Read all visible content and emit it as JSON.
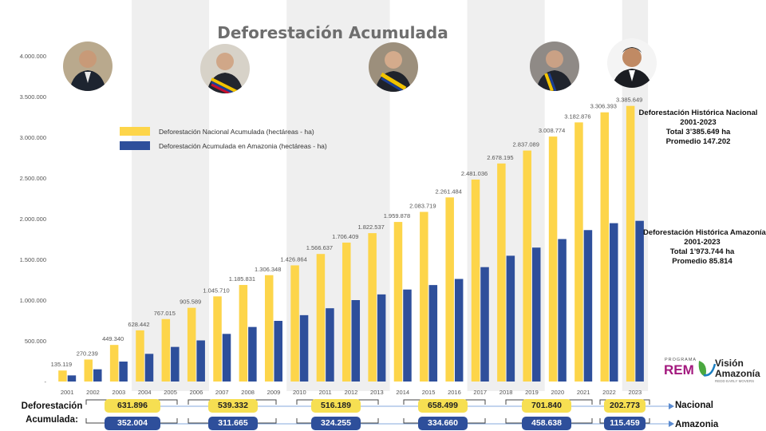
{
  "chart_data": {
    "type": "bar",
    "title": "Deforestación Acumulada",
    "categories": [
      "2001",
      "2002",
      "2003",
      "2004",
      "2005",
      "2006",
      "2007",
      "2008",
      "2009",
      "2010",
      "2011",
      "2012",
      "2013",
      "2014",
      "2015",
      "2016",
      "2017",
      "2018",
      "2019",
      "2020",
      "2021",
      "2022",
      "2023"
    ],
    "series": [
      {
        "name": "Deforestación Nacional Acumulada (hectáreas - ha)",
        "color": "#fdd54a",
        "values": [
          135119,
          270239,
          449340,
          628442,
          767015,
          905589,
          1045710,
          1185831,
          1306348,
          1426864,
          1566637,
          1706409,
          1822537,
          1959878,
          2083719,
          2261484,
          2481036,
          2678195,
          2837089,
          3008774,
          3182876,
          3306393,
          3385649
        ],
        "labels": [
          "135.119",
          "270.239",
          "449.340",
          "628.442",
          "767.015",
          "905.589",
          "1.045.710",
          "1.185.831",
          "1.306.348",
          "1.426.864",
          "1.566.637",
          "1.706.409",
          "1.822.537",
          "1.959.878",
          "2.083.719",
          "2.261.484",
          "2.481.036",
          "2.678.195",
          "2.837.089",
          "3.008.774",
          "3.182.876",
          "3.306.393",
          "3.385.649"
        ]
      },
      {
        "name": "Deforestación Acumulada en Amazonia (hectáreas - ha)",
        "color": "#2e4f9b",
        "values": [
          75000,
          150000,
          245000,
          340000,
          425000,
          505000,
          585000,
          670000,
          745000,
          815000,
          900000,
          1000000,
          1070000,
          1130000,
          1185000,
          1260000,
          1405000,
          1545000,
          1645000,
          1750000,
          1860000,
          1945000,
          1973744
        ]
      }
    ],
    "ylim": [
      0,
      4000000
    ],
    "yticks": [
      0,
      500000,
      1000000,
      1500000,
      2000000,
      2500000,
      3000000,
      3500000,
      4000000
    ],
    "ytick_labels": [
      "-",
      "500.000",
      "1.000.000",
      "1.500.000",
      "2.000.000",
      "2.500.000",
      "3.000.000",
      "3.500.000",
      "4.000.000"
    ],
    "legend_position": "upper-left",
    "grid": false
  },
  "notes": {
    "nacional": [
      "Deforestación Histórica Nacional",
      "2001-2023",
      "Total 3’385.649 ha",
      "Promedio 147.202"
    ],
    "amazonia": [
      "Deforestación Histórica Amazonía",
      "2001-2023",
      "Total 1’973.744 ha",
      "Promedio 85.814"
    ]
  },
  "periods": {
    "row_label": [
      "Deforestación",
      "Acumulada:"
    ],
    "nacional_label": "Nacional",
    "amazonia_label": "Amazonia",
    "nacional": [
      "631.896",
      "539.332",
      "516.189",
      "658.499",
      "701.840",
      "202.773"
    ],
    "amazonia": [
      "352.004",
      "311.665",
      "324.255",
      "334.660",
      "458.638",
      "115.459"
    ]
  },
  "logo": {
    "program": "PROGRAMA",
    "name": "REM",
    "brand_line1": "Visión",
    "brand_line2": "Amazonía",
    "tagline": "REDD EARLY MOVERS"
  },
  "colors": {
    "nacional": "#fdd54a",
    "amazonia": "#2e4f9b",
    "band": "#efefef",
    "title": "#6e6e6e"
  }
}
